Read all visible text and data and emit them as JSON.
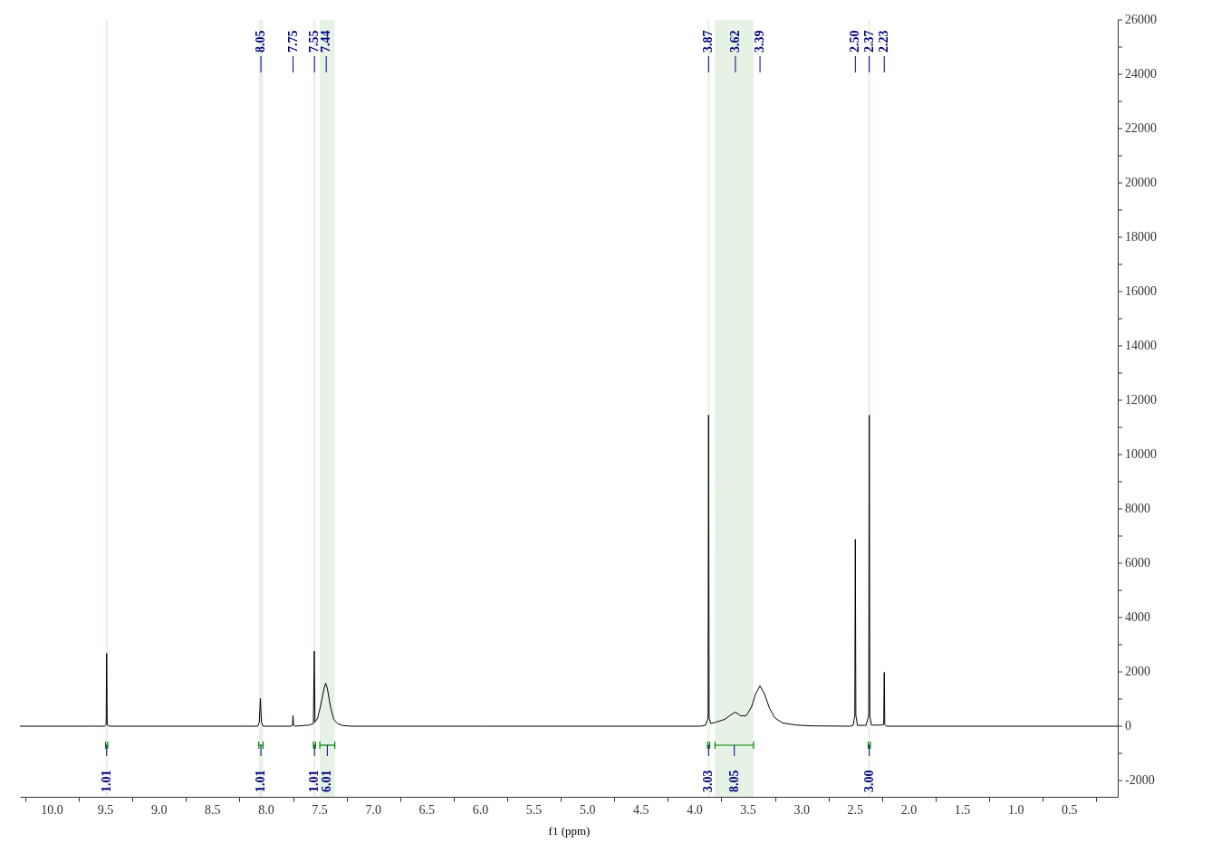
{
  "chart_data": {
    "type": "line",
    "xlabel": "f1 (ppm)",
    "xlim": [
      10.3,
      0.05
    ],
    "ylim": [
      -2600,
      26000
    ],
    "xticks": [
      {
        "value": 10.25,
        "label": null
      },
      {
        "value": 10,
        "label": "10.0"
      },
      {
        "value": 9.75,
        "label": null
      },
      {
        "value": 9.5,
        "label": "9.5"
      },
      {
        "value": 9.25,
        "label": null
      },
      {
        "value": 9,
        "label": "9.0"
      },
      {
        "value": 8.75,
        "label": null
      },
      {
        "value": 8.5,
        "label": "8.5"
      },
      {
        "value": 8.25,
        "label": null
      },
      {
        "value": 8,
        "label": "8.0"
      },
      {
        "value": 7.75,
        "label": null
      },
      {
        "value": 7.5,
        "label": "7.5"
      },
      {
        "value": 7.25,
        "label": null
      },
      {
        "value": 7,
        "label": "7.0"
      },
      {
        "value": 6.75,
        "label": null
      },
      {
        "value": 6.5,
        "label": "6.5"
      },
      {
        "value": 6.25,
        "label": null
      },
      {
        "value": 6,
        "label": "6.0"
      },
      {
        "value": 5.75,
        "label": null
      },
      {
        "value": 5.5,
        "label": "5.5"
      },
      {
        "value": 5.25,
        "label": null
      },
      {
        "value": 5,
        "label": "5.0"
      },
      {
        "value": 4.75,
        "label": null
      },
      {
        "value": 4.5,
        "label": "4.5"
      },
      {
        "value": 4.25,
        "label": null
      },
      {
        "value": 4,
        "label": "4.0"
      },
      {
        "value": 3.75,
        "label": null
      },
      {
        "value": 3.5,
        "label": "3.5"
      },
      {
        "value": 3.25,
        "label": null
      },
      {
        "value": 3,
        "label": "3.0"
      },
      {
        "value": 2.75,
        "label": null
      },
      {
        "value": 2.5,
        "label": "2.5"
      },
      {
        "value": 2.25,
        "label": null
      },
      {
        "value": 2,
        "label": "2.0"
      },
      {
        "value": 1.75,
        "label": null
      },
      {
        "value": 1.5,
        "label": "1.5"
      },
      {
        "value": 1.25,
        "label": null
      },
      {
        "value": 1,
        "label": "1.0"
      },
      {
        "value": 0.75,
        "label": null
      },
      {
        "value": 0.5,
        "label": "0.5"
      },
      {
        "value": 0.25,
        "label": null
      }
    ],
    "yticks": [
      -2000,
      {
        "value": -1000,
        "label": null
      },
      0,
      {
        "value": 1000,
        "label": null
      },
      2000,
      {
        "value": 3000,
        "label": null
      },
      4000,
      {
        "value": 5000,
        "label": null
      },
      6000,
      {
        "value": 7000,
        "label": null
      },
      8000,
      {
        "value": 9000,
        "label": null
      },
      10000,
      {
        "value": 11000,
        "label": null
      },
      12000,
      {
        "value": 13000,
        "label": null
      },
      14000,
      {
        "value": 15000,
        "label": null
      },
      16000,
      {
        "value": 17000,
        "label": null
      },
      18000,
      {
        "value": 19000,
        "label": null
      },
      20000,
      {
        "value": 21000,
        "label": null
      },
      22000,
      {
        "value": 23000,
        "label": null
      },
      24000,
      {
        "value": 25000,
        "label": null
      },
      26000
    ],
    "grid": false,
    "marker": "none",
    "line_style": "solid",
    "x": [
      10.3,
      9.6,
      9.51,
      9.495,
      9.49,
      9.485,
      9.47,
      8.2,
      8.08,
      8.065,
      8.055,
      8.045,
      8.03,
      7.77,
      7.755,
      7.75,
      7.745,
      7.73,
      7.6,
      7.56,
      7.552,
      7.545,
      7.52,
      7.49,
      7.46,
      7.445,
      7.43,
      7.4,
      7.37,
      7.33,
      7.28,
      7.2,
      6.0,
      3.95,
      3.9,
      3.875,
      3.87,
      3.865,
      3.85,
      3.8,
      3.72,
      3.66,
      3.62,
      3.57,
      3.52,
      3.47,
      3.43,
      3.39,
      3.35,
      3.3,
      3.25,
      3.18,
      3.05,
      2.9,
      2.55,
      2.52,
      2.505,
      2.5,
      2.495,
      2.48,
      2.4,
      2.375,
      2.37,
      2.365,
      2.35,
      2.26,
      2.235,
      2.23,
      2.225,
      2.21,
      1.25,
      0.05
    ],
    "series": [
      {
        "color": "#000000",
        "values": [
          0,
          0,
          0,
          50,
          2680,
          50,
          0,
          0,
          0,
          150,
          1020,
          150,
          0,
          0,
          30,
          390,
          30,
          0,
          40,
          100,
          2760,
          150,
          300,
          800,
          1400,
          1580,
          1400,
          700,
          250,
          80,
          20,
          0,
          0,
          0,
          30,
          300,
          11450,
          300,
          100,
          150,
          250,
          420,
          520,
          380,
          380,
          700,
          1200,
          1480,
          1200,
          650,
          300,
          120,
          40,
          10,
          0,
          30,
          400,
          6880,
          400,
          30,
          30,
          400,
          11450,
          400,
          40,
          40,
          60,
          1980,
          60,
          0,
          0,
          0
        ]
      }
    ],
    "annotations": [
      {
        "text": "8.05",
        "x": 8.05
      },
      {
        "text": "7.75",
        "x": 7.75
      },
      {
        "text": "7.55",
        "x": 7.55
      },
      {
        "text": "7.44",
        "x": 7.44
      },
      {
        "text": "3.87",
        "x": 3.87
      },
      {
        "text": "3.62",
        "x": 3.62
      },
      {
        "text": "3.39",
        "x": 3.39
      },
      {
        "text": "2.50",
        "x": 2.5
      },
      {
        "text": "2.37",
        "x": 2.37
      },
      {
        "text": "2.23",
        "x": 2.23
      }
    ],
    "bands": [
      {
        "axis": "x",
        "from": 9.5,
        "to": 9.48,
        "label": "1.01",
        "color": "#008000"
      },
      {
        "axis": "x",
        "from": 8.07,
        "to": 8.03,
        "label": "1.01",
        "color": "#008000"
      },
      {
        "axis": "x",
        "from": 7.56,
        "to": 7.54,
        "label": "1.01",
        "color": "#008000"
      },
      {
        "axis": "x",
        "from": 7.5,
        "to": 7.36,
        "label": "6.01",
        "color": "#008000"
      },
      {
        "axis": "x",
        "from": 3.88,
        "to": 3.86,
        "label": "3.03",
        "color": "#008000"
      },
      {
        "axis": "x",
        "from": 3.81,
        "to": 3.45,
        "label": "8.05",
        "color": "#008000"
      },
      {
        "axis": "x",
        "from": 2.38,
        "to": 2.36,
        "label": "3.00",
        "color": "#008000"
      }
    ]
  }
}
